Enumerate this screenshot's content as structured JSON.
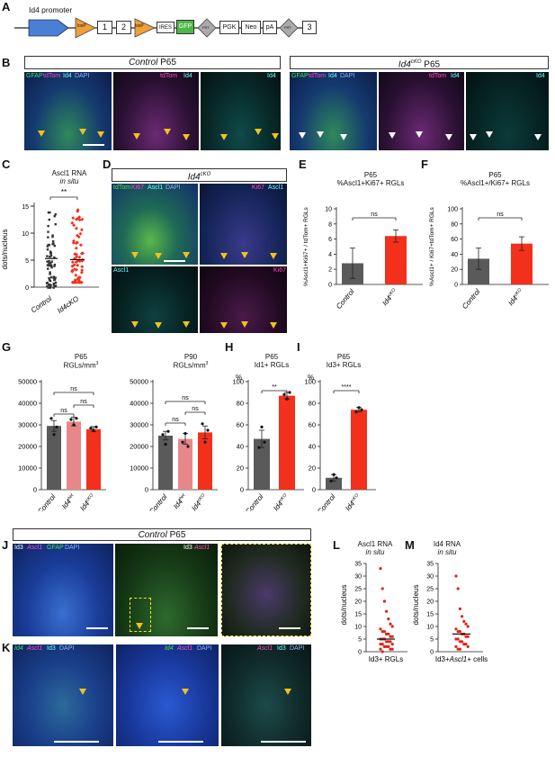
{
  "panels": {
    "A": "A",
    "B": "B",
    "C": "C",
    "D": "D",
    "E": "E",
    "F": "F",
    "G": "G",
    "H": "H",
    "I": "I",
    "J": "J",
    "K": "K",
    "L": "L",
    "M": "M"
  },
  "construct": {
    "label": "Id4 promoter",
    "elements": [
      "1",
      "2",
      "IRES",
      "GFP",
      "FRT",
      "PGK",
      "Neo",
      "pA",
      "FRT",
      "3"
    ],
    "loxp": "loxP"
  },
  "B": {
    "control_title_italic": "Control",
    "control_title_rest": " P65",
    "cko_title_prefix": "Id4",
    "cko_title_sup": "cKO",
    "cko_title_rest": " P65",
    "img1_labels": [
      "GFAP",
      "tdTom",
      "Id4",
      "DAPI"
    ],
    "img2_labels": [
      "tdTom",
      "Id4"
    ],
    "img3_labels": [
      "Id4"
    ]
  },
  "C": {
    "title1": "Ascl1 RNA",
    "title2": "in situ",
    "ylabel": "dots/nucleus",
    "yticks": [
      "0",
      "5",
      "10",
      "15"
    ],
    "sig": "**",
    "xlabels": [
      "Control",
      "Id4cKO"
    ]
  },
  "D": {
    "title_prefix": "Id4",
    "title_sup": "cKO",
    "q1": [
      "tdTom",
      "Ki67",
      "Ascl1",
      "DAPI"
    ],
    "q2": [
      "Ki67",
      "Ascl1"
    ],
    "q3": [
      "Ascl1"
    ],
    "q4": [
      "Ki67"
    ]
  },
  "E": {
    "title1": "P65",
    "title2": "%Ascl1+Ki67+ RGLs",
    "ylabel": "%Ascl1+Ki67+ / tdTom+ RGLs",
    "sig": "ns"
  },
  "F": {
    "title1": "P65",
    "title2": "%Ascl1+/Ki67+ RGLs",
    "ylabel": "%Ascl1+ / Ki67+tdTom+ RGLs",
    "sig": "ns"
  },
  "G": {
    "title_p65_1": "P65",
    "title_p90_1": "P90",
    "title_2": "RGLs/mm",
    "title_sup": "3",
    "sig": "ns"
  },
  "H": {
    "title1": "P65",
    "title2": "Id1+ RGLs",
    "ylabel": "%",
    "sig": "**"
  },
  "I": {
    "title1": "P65",
    "title2": "Id3+ RGLs",
    "ylabel": "%",
    "sig": "****"
  },
  "J": {
    "title_italic": "Control",
    "title_rest": " P65",
    "img1_labels": [
      "Id3",
      "Ascl1",
      "GFAP",
      "DAPI"
    ],
    "img2_labels": [
      "Id3",
      "Ascl1"
    ]
  },
  "K": {
    "img1_labels": [
      "Id4",
      "Ascl1",
      "Id3",
      "DAPI"
    ],
    "img2_labels": [
      "Id4",
      "Ascl1",
      "DAPI"
    ],
    "img3_labels": [
      "Ascl1",
      "Id3",
      "DAPI"
    ]
  },
  "L": {
    "title1": "Ascl1 RNA",
    "title2": "in situ",
    "ylabel": "dots/nucleus",
    "xlabel": "Id3+ RGLs",
    "yticks": [
      "0",
      "5",
      "10",
      "15",
      "20",
      "25",
      "30",
      "35"
    ]
  },
  "M": {
    "title1": "Id4 RNA",
    "title2": "in situ",
    "ylabel": "dots/nucleus",
    "xlabel_a": "Id3+",
    "xlabel_b": "Ascl1",
    "xlabel_c": "+ cells",
    "yticks": [
      "0",
      "5",
      "10",
      "15",
      "20",
      "25",
      "30",
      "35"
    ]
  },
  "colors": {
    "control": "#5a5a5a",
    "id4het": "#e8878a",
    "cko": "#f2301c",
    "arrow": "#f2c21b"
  },
  "chart_data": [
    {
      "panel": "E",
      "type": "bar",
      "categories": [
        "Control",
        "Id4cKO"
      ],
      "values": [
        2.8,
        6.4
      ],
      "errors": [
        2.0,
        0.8
      ],
      "ylim": [
        0,
        10
      ],
      "yticks": [
        0,
        2,
        4,
        6,
        8,
        10
      ],
      "ylabel": "%Ascl1+Ki67+ / tdTom+ RGLs",
      "title": "P65 %Ascl1+Ki67+ RGLs"
    },
    {
      "panel": "F",
      "type": "bar",
      "categories": [
        "Control",
        "Id4cKO"
      ],
      "values": [
        34,
        54
      ],
      "errors": [
        14,
        9
      ],
      "ylim": [
        0,
        100
      ],
      "yticks": [
        0,
        20,
        40,
        60,
        80,
        100
      ],
      "ylabel": "%Ascl1+ / Ki67+tdTom+ RGLs",
      "title": "P65 %Ascl1+/Ki67+ RGLs"
    },
    {
      "panel": "G-P65",
      "type": "bar",
      "categories": [
        "Control",
        "Id4het",
        "Id4cKO"
      ],
      "values": [
        29500,
        31500,
        28000
      ],
      "errors": [
        2500,
        2000,
        1200
      ],
      "ylim": [
        0,
        50000
      ],
      "yticks": [
        0,
        10000,
        20000,
        30000,
        40000,
        50000
      ],
      "title": "P65 RGLs/mm3"
    },
    {
      "panel": "G-P90",
      "type": "bar",
      "categories": [
        "Control",
        "Id4het",
        "Id4cKO"
      ],
      "values": [
        25000,
        23500,
        26500
      ],
      "errors": [
        2000,
        2500,
        3000
      ],
      "ylim": [
        0,
        50000
      ],
      "yticks": [
        0,
        10000,
        20000,
        30000,
        40000,
        50000
      ],
      "title": "P90 RGLs/mm3"
    },
    {
      "panel": "H",
      "type": "bar",
      "categories": [
        "Control",
        "Id4cKO"
      ],
      "values": [
        47,
        87
      ],
      "errors": [
        8,
        3
      ],
      "ylim": [
        0,
        100
      ],
      "yticks": [
        0,
        20,
        40,
        60,
        80,
        100
      ],
      "ylabel": "%",
      "title": "P65 Id1+ RGLs"
    },
    {
      "panel": "I",
      "type": "bar",
      "categories": [
        "Control",
        "Id4cKO"
      ],
      "values": [
        11,
        74
      ],
      "errors": [
        3,
        2
      ],
      "ylim": [
        0,
        100
      ],
      "yticks": [
        0,
        20,
        40,
        60,
        80,
        100
      ],
      "ylabel": "%",
      "title": "P65 Id3+ RGLs"
    }
  ]
}
